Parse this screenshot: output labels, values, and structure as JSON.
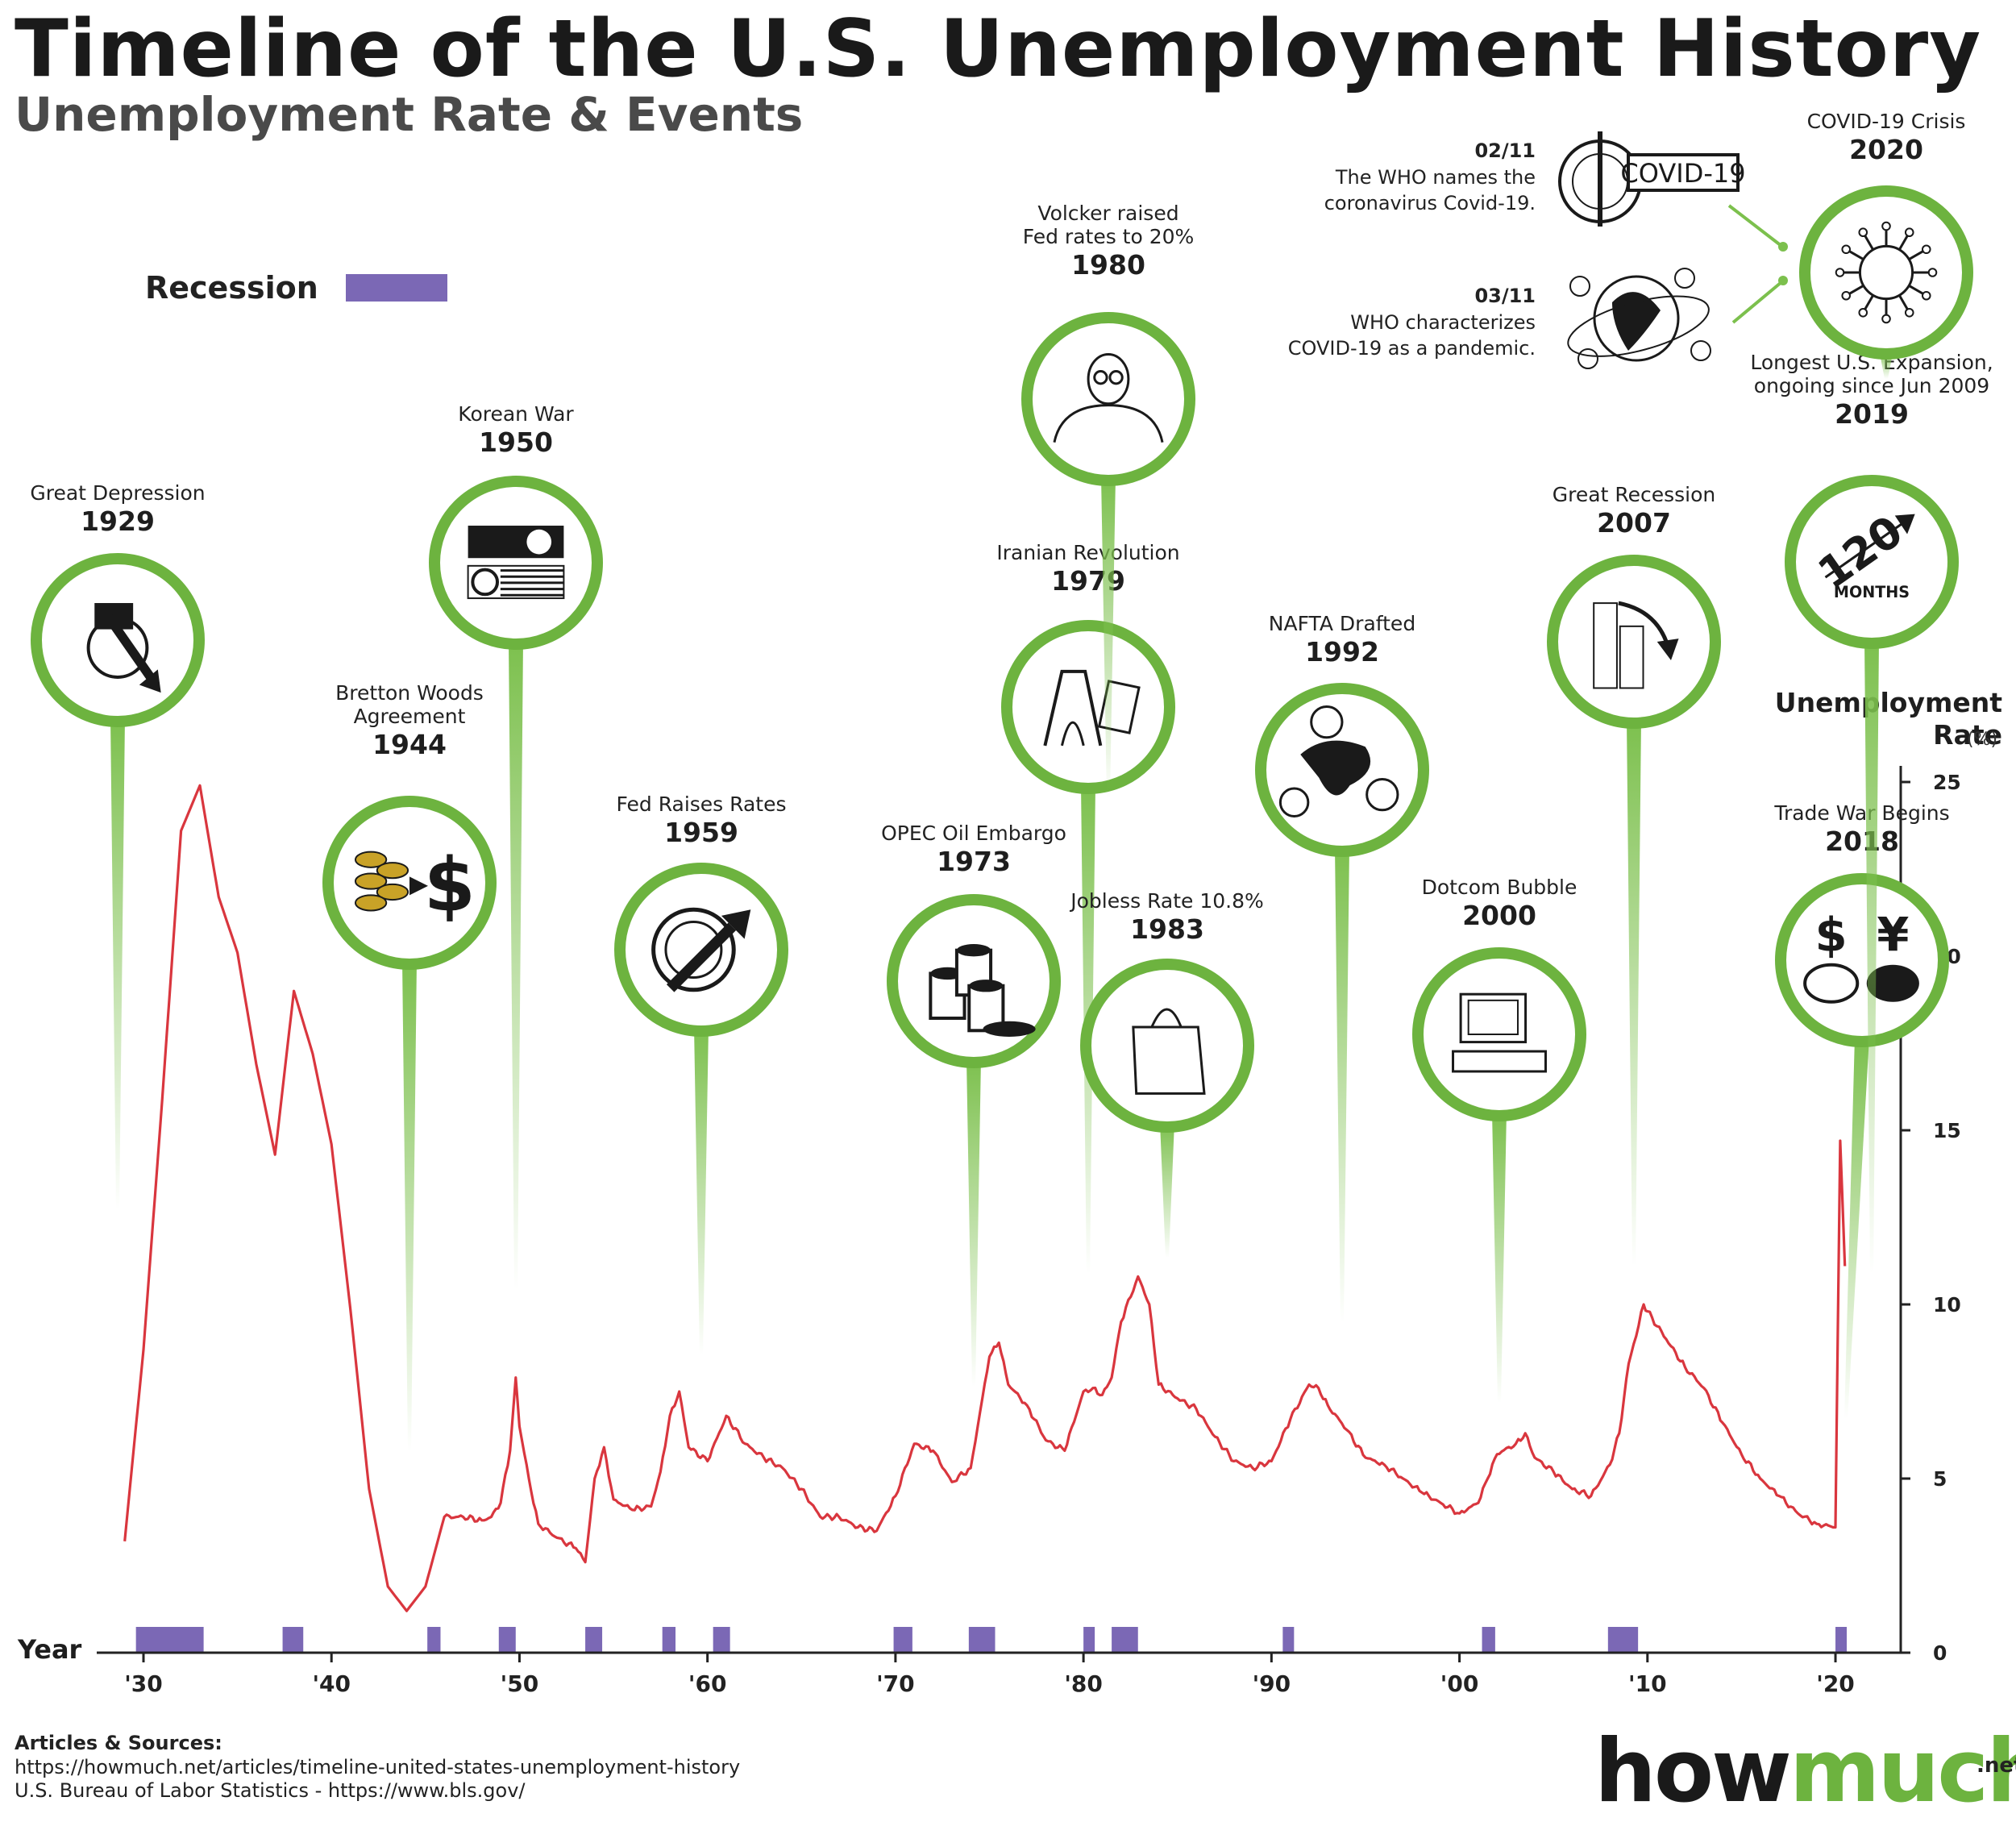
{
  "header": {
    "title": "Timeline of the U.S. Unemployment History",
    "subtitle": "Unemployment Rate & Events"
  },
  "legend": {
    "label": "Recession",
    "color": "#7b68b5"
  },
  "colors": {
    "line": "#d9363e",
    "pin": "#7cc04d",
    "pin_ring": "#6db33f",
    "recession": "#7b68b5"
  },
  "chart_data": {
    "type": "line",
    "title": "Timeline of the U.S. Unemployment History",
    "subtitle": "Unemployment Rate & Events",
    "xlabel": "Year",
    "ylabel": "Unemployment Rate",
    "yunit": "(%)",
    "xlim": [
      1928.8,
      2022.7
    ],
    "ylim": [
      0,
      25
    ],
    "yticks": [
      0,
      5,
      10,
      15,
      20,
      25
    ],
    "xticks": [
      1930,
      1940,
      1950,
      1960,
      1970,
      1980,
      1990,
      2000,
      2010,
      2020
    ],
    "xtick_labels": [
      "'30",
      "'40",
      "'50",
      "'60",
      "'70",
      "'80",
      "'90",
      "'00",
      "'10",
      "'20"
    ],
    "series": [
      {
        "name": "",
        "x": [
          1929.0,
          1930.0,
          1931.0,
          1932.0,
          1933.0,
          1934.0,
          1935.0,
          1936.0,
          1937.0,
          1938.0,
          1939.0,
          1940.0,
          1941.0,
          1942.0,
          1943.0,
          1944.0,
          1945.0,
          1946.0,
          1947.0,
          1948.0,
          1948.5,
          1949.0,
          1949.5,
          1949.8,
          1950.0,
          1950.5,
          1951.0,
          1952.0,
          1953.0,
          1953.5,
          1954.0,
          1954.5,
          1955.0,
          1956.0,
          1957.0,
          1957.5,
          1958.0,
          1958.5,
          1959.0,
          1960.0,
          1961.0,
          1962.0,
          1963.0,
          1964.0,
          1965.0,
          1966.0,
          1967.0,
          1968.0,
          1969.0,
          1970.0,
          1971.0,
          1972.0,
          1973.0,
          1974.0,
          1975.0,
          1975.5,
          1976.0,
          1977.0,
          1978.0,
          1979.0,
          1980.0,
          1980.5,
          1981.0,
          1981.5,
          1982.0,
          1982.9,
          1983.5,
          1984.0,
          1985.0,
          1986.0,
          1987.0,
          1988.0,
          1989.0,
          1990.0,
          1991.0,
          1992.0,
          1992.5,
          1993.0,
          1994.0,
          1995.0,
          1996.0,
          1997.0,
          1998.0,
          1999.0,
          2000.0,
          2001.0,
          2001.5,
          2002.0,
          2003.0,
          2003.5,
          2004.0,
          2005.0,
          2006.0,
          2007.0,
          2008.0,
          2008.5,
          2009.0,
          2009.8,
          2010.0,
          2011.0,
          2012.0,
          2013.0,
          2014.0,
          2015.0,
          2016.0,
          2017.0,
          2018.0,
          2019.0,
          2020.0,
          2020.25,
          2020.35,
          2020.5
        ],
        "y": [
          3.2,
          8.7,
          15.9,
          23.6,
          24.9,
          21.7,
          20.1,
          16.9,
          14.3,
          19.0,
          17.2,
          14.6,
          9.9,
          4.7,
          1.9,
          1.2,
          1.9,
          3.9,
          3.9,
          3.8,
          3.9,
          4.3,
          5.8,
          7.9,
          6.5,
          5.0,
          3.7,
          3.3,
          3.0,
          2.6,
          5.0,
          5.9,
          4.4,
          4.1,
          4.2,
          5.2,
          6.8,
          7.5,
          5.9,
          5.5,
          6.8,
          6.0,
          5.6,
          5.3,
          4.7,
          3.9,
          3.9,
          3.6,
          3.5,
          4.5,
          6.0,
          5.8,
          4.9,
          5.3,
          8.5,
          8.9,
          7.7,
          7.1,
          6.1,
          5.8,
          7.5,
          7.6,
          7.4,
          7.9,
          9.5,
          10.8,
          10.0,
          7.7,
          7.3,
          7.0,
          6.2,
          5.5,
          5.3,
          5.5,
          6.7,
          7.7,
          7.6,
          7.1,
          6.4,
          5.6,
          5.4,
          5.0,
          4.6,
          4.3,
          4.0,
          4.3,
          5.0,
          5.7,
          6.0,
          6.3,
          5.6,
          5.2,
          4.7,
          4.5,
          5.4,
          6.3,
          8.3,
          10.0,
          9.8,
          9.0,
          8.2,
          7.6,
          6.6,
          5.7,
          5.0,
          4.5,
          4.0,
          3.7,
          3.6,
          14.7,
          13.3,
          11.1
        ]
      }
    ],
    "recessions": [
      [
        1929.6,
        1933.2
      ],
      [
        1937.4,
        1938.5
      ],
      [
        1945.1,
        1945.8
      ],
      [
        1948.9,
        1949.8
      ],
      [
        1953.5,
        1954.4
      ],
      [
        1957.6,
        1958.3
      ],
      [
        1960.3,
        1961.2
      ],
      [
        1969.9,
        1970.9
      ],
      [
        1973.9,
        1975.3
      ],
      [
        1980.0,
        1980.6
      ],
      [
        1981.5,
        1982.9
      ],
      [
        1990.6,
        1991.2
      ],
      [
        2001.2,
        2001.9
      ],
      [
        2007.9,
        2009.5
      ],
      [
        2020.0,
        2020.4
      ]
    ],
    "events": [
      {
        "name": "Great Depression",
        "year": "1929",
        "x": 1929.3,
        "icon": "bank-crash-icon"
      },
      {
        "name": "Bretton Woods Agreement",
        "year": "1944",
        "x": 1944.0,
        "icon": "gold-to-dollar-icon"
      },
      {
        "name": "Korean War",
        "year": "1950",
        "x": 1950.0,
        "icon": "korea-flags-icon"
      },
      {
        "name": "Fed Raises Rates",
        "year": "1959",
        "x": 1959.0,
        "icon": "federal-reserve-seal-icon"
      },
      {
        "name": "OPEC Oil Embargo",
        "year": "1973",
        "x": 1973.0,
        "icon": "oil-barrels-icon"
      },
      {
        "name": "Iranian Revolution",
        "year": "1979",
        "x": 1979.0,
        "icon": "azadi-tower-icon"
      },
      {
        "name": "Volcker raised Fed rates to 20%",
        "year": "1980",
        "x": 1980.0,
        "icon": "volcker-portrait-icon"
      },
      {
        "name": "Jobless Rate 10.8%",
        "year": "1983",
        "x": 1982.9,
        "icon": "shopping-bag-icon"
      },
      {
        "name": "NAFTA Drafted",
        "year": "1992",
        "x": 1992.0,
        "icon": "north-america-map-icon"
      },
      {
        "name": "Dotcom Bubble",
        "year": "2000",
        "x": 2000.0,
        "icon": "computer-icon"
      },
      {
        "name": "Great Recession",
        "year": "2007",
        "x": 2007.0,
        "icon": "falling-skyscraper-icon"
      },
      {
        "name": "Trade War Begins",
        "year": "2018",
        "x": 2018.0,
        "icon": "dollar-vs-yuan-icon"
      },
      {
        "name": "Longest U.S. Expansion, ongoing since Jun 2009",
        "year": "2019",
        "x": 2019.0,
        "icon": "120-months-icon"
      },
      {
        "name": "COVID-19 Crisis",
        "year": "2020",
        "x": 2020.0,
        "icon": "coronavirus-icon"
      }
    ],
    "covid_notes": [
      {
        "date": "02/11",
        "text": "The WHO names the coronavirus Covid-19.",
        "icon": "who-emblem-icon",
        "badge": "COVID-19"
      },
      {
        "date": "03/11",
        "text": "WHO characterizes COVID-19 as a pandemic.",
        "icon": "globe-virus-icon"
      }
    ],
    "grid": false,
    "legend_position": "top-left"
  },
  "footer": {
    "heading": "Articles & Sources:",
    "sources": [
      "https://howmuch.net/articles/timeline-united-states-unemployment-history",
      "U.S. Bureau of Labor Statistics - https://www.bls.gov/"
    ]
  },
  "brand": {
    "part1": "how",
    "part2": "much",
    "tld": ".net"
  }
}
